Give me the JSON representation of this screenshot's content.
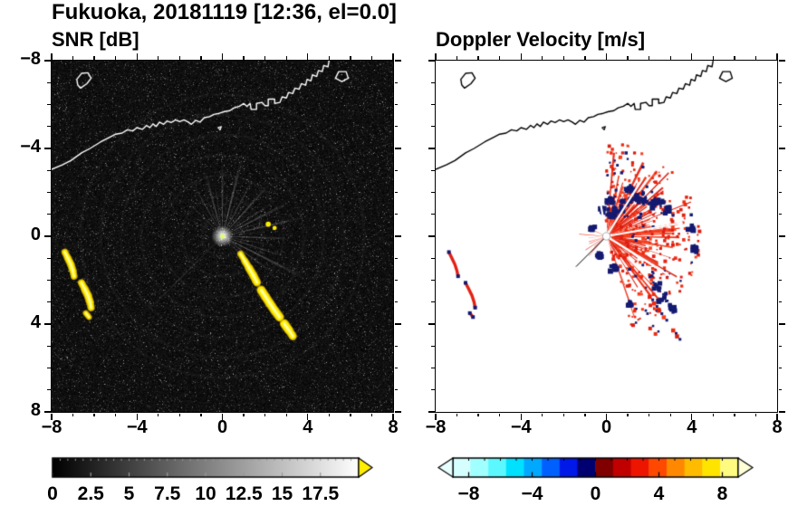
{
  "title": "Fukuoka, 20181119 [12:36, el=0.0]",
  "panels": {
    "snr": {
      "title": "SNR [dB]"
    },
    "doppler": {
      "title": "Doppler Velocity [m/s]"
    }
  },
  "axes": {
    "range": [
      -8,
      8
    ],
    "minor_step": 1,
    "major_values": [
      -8,
      -4,
      0,
      4,
      8
    ],
    "x_tick_labels": [
      "−8",
      "−4",
      "0",
      "4",
      "8"
    ],
    "y_tick_labels": [
      "8",
      "4",
      "0",
      "−4",
      "−8"
    ]
  },
  "colorbars": {
    "snr": {
      "range": [
        0,
        20
      ],
      "tick_values": [
        0,
        2.5,
        5,
        7.5,
        10,
        12.5,
        15,
        17.5
      ],
      "tick_labels": [
        "0",
        "2.5",
        "5",
        "7.5",
        "10",
        "12.5",
        "15",
        "17.5"
      ],
      "start_color": "#000000",
      "end_color": "#ffffff",
      "over_arrow_color": "#ffee00",
      "minor_step": 0.5,
      "major_step": 2.5
    },
    "doppler": {
      "range": [
        -9,
        9
      ],
      "tick_values": [
        -8,
        -4,
        0,
        4,
        8
      ],
      "tick_labels": [
        "−8",
        "−4",
        "0",
        "4",
        "8"
      ],
      "stops": [
        "#d5ffff",
        "#a0ffff",
        "#5cf8ff",
        "#00e0ff",
        "#00a8ff",
        "#0060ff",
        "#0018e8",
        "#000070",
        "#800000",
        "#c00000",
        "#ee1500",
        "#ff4800",
        "#ff8800",
        "#ffbb00",
        "#ffe400",
        "#fffa80"
      ],
      "under_arrow_color": "#e8ffff",
      "over_arrow_color": "#ffffd8",
      "minor_step": 1
    }
  },
  "chart_data": {
    "type": "heatmap",
    "title": "Fukuoka, 20181119 [12:36, el=0.0]",
    "panels": [
      {
        "title": "SNR [dB]",
        "variable": "radar signal-to-noise ratio",
        "units": "dB",
        "x_range": [
          -8,
          8
        ],
        "y_range": [
          -8,
          8
        ],
        "xticks": [
          -8,
          -4,
          0,
          4,
          8
        ],
        "yticks": [
          -8,
          -4,
          0,
          4,
          8
        ],
        "colorbar": {
          "range": [
            0,
            20
          ],
          "ticks": [
            0,
            2.5,
            5,
            7.5,
            10,
            12.5,
            15,
            17.5
          ],
          "colormap": "black-to-white grayscale, yellow over-range arrow"
        },
        "notable_features": [
          "radar at origin with bright center and gray radial beam spokes",
          "bright yellow high-SNR arc from (0.9,-0.8) to (3.3,-4.6)",
          "yellow echo arcs near (-7.2,-1.3), (-6.4,-2.7) and (-6.3,-3.6)",
          "white coastline across the top of the domain (y ~ 3 to 8)",
          "dark speckled noise background"
        ]
      },
      {
        "title": "Doppler Velocity [m/s]",
        "variable": "Doppler velocity",
        "units": "m/s",
        "x_range": [
          -8,
          8
        ],
        "y_range": [
          -8,
          8
        ],
        "xticks": [
          -8,
          -4,
          0,
          4,
          8
        ],
        "yticks": [
          -8,
          -4,
          0,
          4,
          8
        ],
        "colorbar": {
          "range": [
            -9,
            9
          ],
          "ticks": [
            -8,
            -4,
            0,
            4,
            8
          ],
          "colormap": "cyan-blue-navy negative, dark red-red-orange-yellow positive"
        },
        "notable_features": [
          "fan of mostly positive (red, ~+1 to +4 m/s) velocities east/southeast of radar",
          "patches of negative (navy) velocities near (1.5,1.5) and (2.7,-2.8)",
          "small red/navy echoes west near (-7.2,-1.3) and (-6.4,-2.7)",
          "black coastline across the top, white elsewhere"
        ]
      }
    ]
  },
  "features": {
    "coast_main": [
      [
        -8.0,
        3.05
      ],
      [
        -7.5,
        3.25
      ],
      [
        -7.1,
        3.45
      ],
      [
        -6.6,
        3.8
      ],
      [
        -6.2,
        4.0
      ],
      [
        -5.7,
        4.3
      ],
      [
        -5.3,
        4.5
      ],
      [
        -5.0,
        4.65
      ],
      [
        -4.7,
        4.7
      ],
      [
        -4.45,
        4.85
      ],
      [
        -4.2,
        4.8
      ],
      [
        -4.0,
        4.95
      ],
      [
        -3.75,
        4.87
      ],
      [
        -3.55,
        5.05
      ],
      [
        -3.4,
        4.95
      ],
      [
        -3.25,
        5.12
      ],
      [
        -3.1,
        5.0
      ],
      [
        -2.95,
        5.2
      ],
      [
        -2.75,
        5.1
      ],
      [
        -2.6,
        5.25
      ],
      [
        -2.4,
        5.18
      ],
      [
        -2.2,
        5.3
      ],
      [
        -2.0,
        5.22
      ],
      [
        -1.8,
        5.3
      ],
      [
        -1.6,
        5.2
      ],
      [
        -1.45,
        5.1
      ],
      [
        -1.25,
        5.28
      ],
      [
        -1.05,
        5.2
      ],
      [
        -0.85,
        5.4
      ],
      [
        -0.6,
        5.45
      ],
      [
        -0.4,
        5.55
      ],
      [
        -0.15,
        5.6
      ],
      [
        0.1,
        5.68
      ],
      [
        0.35,
        5.72
      ],
      [
        0.55,
        5.85
      ],
      [
        0.8,
        5.92
      ],
      [
        1.0,
        6.05
      ],
      [
        1.15,
        5.92
      ],
      [
        1.3,
        6.05
      ],
      [
        1.35,
        5.78
      ],
      [
        1.6,
        5.78
      ],
      [
        1.6,
        6.05
      ],
      [
        1.85,
        6.1
      ],
      [
        2.0,
        5.95
      ],
      [
        2.15,
        5.95
      ],
      [
        2.15,
        6.25
      ],
      [
        2.45,
        6.25
      ],
      [
        2.45,
        6.05
      ],
      [
        2.7,
        6.1
      ],
      [
        2.8,
        6.35
      ],
      [
        3.0,
        6.3
      ],
      [
        3.1,
        6.55
      ],
      [
        3.3,
        6.5
      ],
      [
        3.4,
        6.75
      ],
      [
        3.6,
        6.7
      ],
      [
        3.7,
        6.95
      ],
      [
        3.9,
        6.88
      ],
      [
        3.97,
        7.15
      ],
      [
        4.15,
        7.08
      ],
      [
        4.22,
        7.35
      ],
      [
        4.42,
        7.28
      ],
      [
        4.5,
        7.55
      ],
      [
        4.68,
        7.5
      ],
      [
        4.75,
        7.78
      ],
      [
        4.95,
        7.72
      ],
      [
        5.0,
        8.0
      ]
    ],
    "island": [
      [
        -6.65,
        6.75
      ],
      [
        -6.35,
        6.95
      ],
      [
        -6.15,
        7.2
      ],
      [
        -6.3,
        7.45
      ],
      [
        -6.6,
        7.42
      ],
      [
        -6.82,
        7.15
      ],
      [
        -6.78,
        6.9
      ],
      [
        -6.65,
        6.75
      ]
    ],
    "islet2": [
      [
        5.3,
        7.2
      ],
      [
        5.6,
        7.05
      ],
      [
        5.9,
        7.2
      ],
      [
        5.8,
        7.5
      ],
      [
        5.45,
        7.5
      ],
      [
        5.3,
        7.2
      ]
    ],
    "coast_mark": [
      [
        -0.2,
        4.95
      ],
      [
        -0.05,
        5.0
      ],
      [
        -0.1,
        4.85
      ],
      [
        -0.2,
        4.95
      ]
    ],
    "rays": [
      [
        105,
        3.1,
        2.2,
        0.3
      ],
      [
        98,
        2.5,
        1.6,
        0.22
      ],
      [
        90,
        3.5,
        2.0,
        0.28
      ],
      [
        83,
        2.2,
        1.5,
        0.2
      ],
      [
        76,
        3.7,
        2.4,
        0.33
      ],
      [
        69,
        2.4,
        1.5,
        0.22
      ],
      [
        62,
        3.0,
        2.0,
        0.26
      ],
      [
        55,
        2.3,
        1.4,
        0.2
      ],
      [
        48,
        3.3,
        2.2,
        0.3
      ],
      [
        41,
        2.1,
        1.4,
        0.18
      ],
      [
        34,
        2.8,
        1.8,
        0.25
      ],
      [
        27,
        3.5,
        2.2,
        0.3
      ],
      [
        20,
        2.3,
        1.5,
        0.2
      ],
      [
        13,
        4.0,
        1.8,
        0.28
      ],
      [
        6,
        2.1,
        1.4,
        0.18
      ],
      [
        -2,
        3.2,
        2.0,
        0.28
      ],
      [
        -10,
        2.5,
        1.6,
        0.22
      ],
      [
        -18,
        3.0,
        1.8,
        0.26
      ],
      [
        -27,
        4.4,
        2.0,
        0.3
      ],
      [
        -36,
        3.1,
        1.8,
        0.26
      ],
      [
        -45,
        2.4,
        1.5,
        0.2
      ],
      [
        -54,
        1.9,
        1.3,
        0.16
      ],
      [
        -63,
        1.6,
        1.2,
        0.14
      ],
      [
        112,
        2.3,
        1.5,
        0.2
      ],
      [
        119,
        2.9,
        1.8,
        0.24
      ],
      [
        127,
        2.0,
        1.4,
        0.16
      ],
      [
        135,
        2.5,
        1.6,
        0.2
      ],
      [
        144,
        1.7,
        1.2,
        0.14
      ],
      [
        153,
        2.1,
        1.4,
        0.16
      ],
      [
        165,
        1.5,
        1.2,
        0.12
      ],
      [
        180,
        1.7,
        1.2,
        0.13
      ],
      [
        196,
        1.4,
        1.1,
        0.11
      ],
      [
        225,
        5.2,
        0.5,
        0.35
      ],
      [
        243,
        1.3,
        1.0,
        0.1
      ],
      [
        260,
        1.1,
        1.0,
        0.09
      ]
    ],
    "arc_main": {
      "points": [
        [
          0.85,
          -0.8,
          0.18
        ],
        [
          1.05,
          -1.12,
          0.22
        ],
        [
          1.25,
          -1.45,
          0.26
        ],
        [
          1.45,
          -1.78,
          0.3
        ],
        [
          1.62,
          -2.1,
          0.26
        ],
        [
          1.82,
          -2.45,
          0.3
        ],
        [
          2.02,
          -2.75,
          0.34
        ],
        [
          2.22,
          -3.05,
          0.3
        ],
        [
          2.45,
          -3.38,
          0.34
        ],
        [
          2.68,
          -3.68,
          0.3
        ],
        [
          2.9,
          -3.98,
          0.34
        ],
        [
          3.12,
          -4.28,
          0.3
        ],
        [
          3.3,
          -4.55,
          0.26
        ]
      ],
      "gaps": [
        4,
        9
      ]
    },
    "arc_left": [
      [
        [
          -7.38,
          -0.72,
          0.2
        ],
        [
          -7.25,
          -0.98,
          0.24
        ],
        [
          -7.1,
          -1.28,
          0.26
        ],
        [
          -7.0,
          -1.58,
          0.24
        ],
        [
          -6.95,
          -1.82,
          0.2
        ]
      ],
      [
        [
          -6.6,
          -2.12,
          0.22
        ],
        [
          -6.45,
          -2.4,
          0.26
        ],
        [
          -6.3,
          -2.7,
          0.28
        ],
        [
          -6.2,
          -3.0,
          0.26
        ],
        [
          -6.15,
          -3.25,
          0.22
        ]
      ],
      [
        [
          -6.4,
          -3.5,
          0.18
        ],
        [
          -6.25,
          -3.68,
          0.16
        ]
      ]
    ],
    "yellow_dashes": [
      [
        2.15,
        0.55,
        0.12
      ],
      [
        2.45,
        0.38,
        0.1
      ]
    ],
    "navy_patches": [
      [
        0.55,
        1.15,
        0.22
      ],
      [
        0.9,
        1.4,
        0.3
      ],
      [
        1.3,
        1.6,
        0.33
      ],
      [
        1.7,
        1.75,
        0.3
      ],
      [
        2.1,
        1.45,
        0.28
      ],
      [
        2.5,
        1.6,
        0.24
      ],
      [
        2.8,
        1.2,
        0.2
      ],
      [
        1.1,
        2.1,
        0.2
      ],
      [
        0.2,
        0.9,
        0.18
      ],
      [
        0.2,
        1.6,
        0.2
      ],
      [
        -0.1,
        1.2,
        0.18
      ],
      [
        2.3,
        -2.3,
        0.24
      ],
      [
        2.7,
        -2.8,
        0.28
      ],
      [
        3.05,
        -3.3,
        0.22
      ],
      [
        0.35,
        -1.45,
        0.18
      ],
      [
        -0.35,
        -0.85,
        0.15
      ],
      [
        3.9,
        0.35,
        0.18
      ],
      [
        4.1,
        -0.6,
        0.16
      ],
      [
        1.05,
        -3.1,
        0.15
      ],
      [
        -0.6,
        0.4,
        0.14
      ]
    ],
    "se_specks_extra": [
      [
        2.05,
        -4.2
      ],
      [
        2.3,
        -4.45
      ],
      [
        1.25,
        -4.05
      ]
    ],
    "doppler": {
      "seed": 77,
      "main_count": 95,
      "core_count": 55,
      "west_count": 10,
      "speck_count": 620,
      "navy_speck_count": 170,
      "white_gap_angles": [
        10,
        -32,
        58,
        100
      ],
      "black_line": {
        "angle": 225,
        "len": 2.0
      }
    },
    "colors": {
      "snr_echo": "#ffec00",
      "snr_echo_edge": "#c8a400",
      "snr_echo_core": "#ffff9e",
      "doppler_pos": [
        "#e32112",
        "#ee2a10",
        "#d91d0e",
        "#f5401e"
      ],
      "doppler_neg": "#141a70",
      "coast_snr": "#ffffff",
      "coast_doppler": "#000000"
    }
  }
}
